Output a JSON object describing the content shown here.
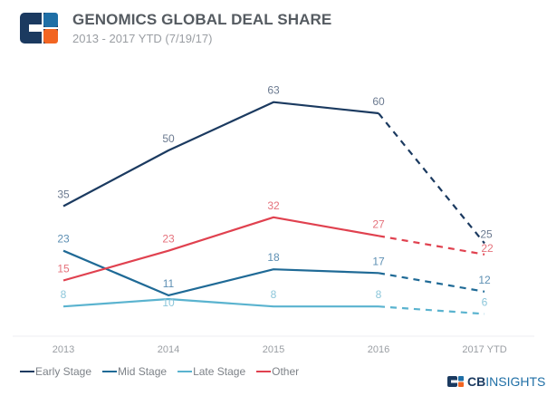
{
  "header": {
    "title": "GENOMICS GLOBAL DEAL SHARE",
    "subtitle": "2013 - 2017 YTD (7/19/17)"
  },
  "brand": {
    "bold": "CB",
    "rest": "INSIGHTS",
    "icon": "cb-insights-logo-icon"
  },
  "chart_data": {
    "type": "line",
    "title": "GENOMICS GLOBAL DEAL SHARE",
    "subtitle": "2013 - 2017 YTD (7/19/17)",
    "xlabel": "",
    "ylabel": "",
    "categories": [
      "2013",
      "2014",
      "2015",
      "2016",
      "2017 YTD"
    ],
    "ylim": [
      0,
      70
    ],
    "grid": false,
    "legend_position": "bottom-left",
    "projected_from_index": 3,
    "series": [
      {
        "name": "Early Stage",
        "color": "#1b3a60",
        "values": [
          35,
          50,
          63,
          60,
          25
        ]
      },
      {
        "name": "Mid Stage",
        "color": "#1f6a96",
        "values": [
          23,
          11,
          18,
          17,
          12
        ]
      },
      {
        "name": "Late Stage",
        "color": "#5ab3cf",
        "values": [
          8,
          10,
          8,
          8,
          6
        ]
      },
      {
        "name": "Other",
        "color": "#e0414f",
        "values": [
          15,
          23,
          32,
          27,
          22
        ]
      }
    ],
    "label_colors": {
      "Early Stage": "#6b7a90",
      "Mid Stage": "#5d8fb3",
      "Late Stage": "#8cc6da",
      "Other": "#e5727c"
    }
  }
}
